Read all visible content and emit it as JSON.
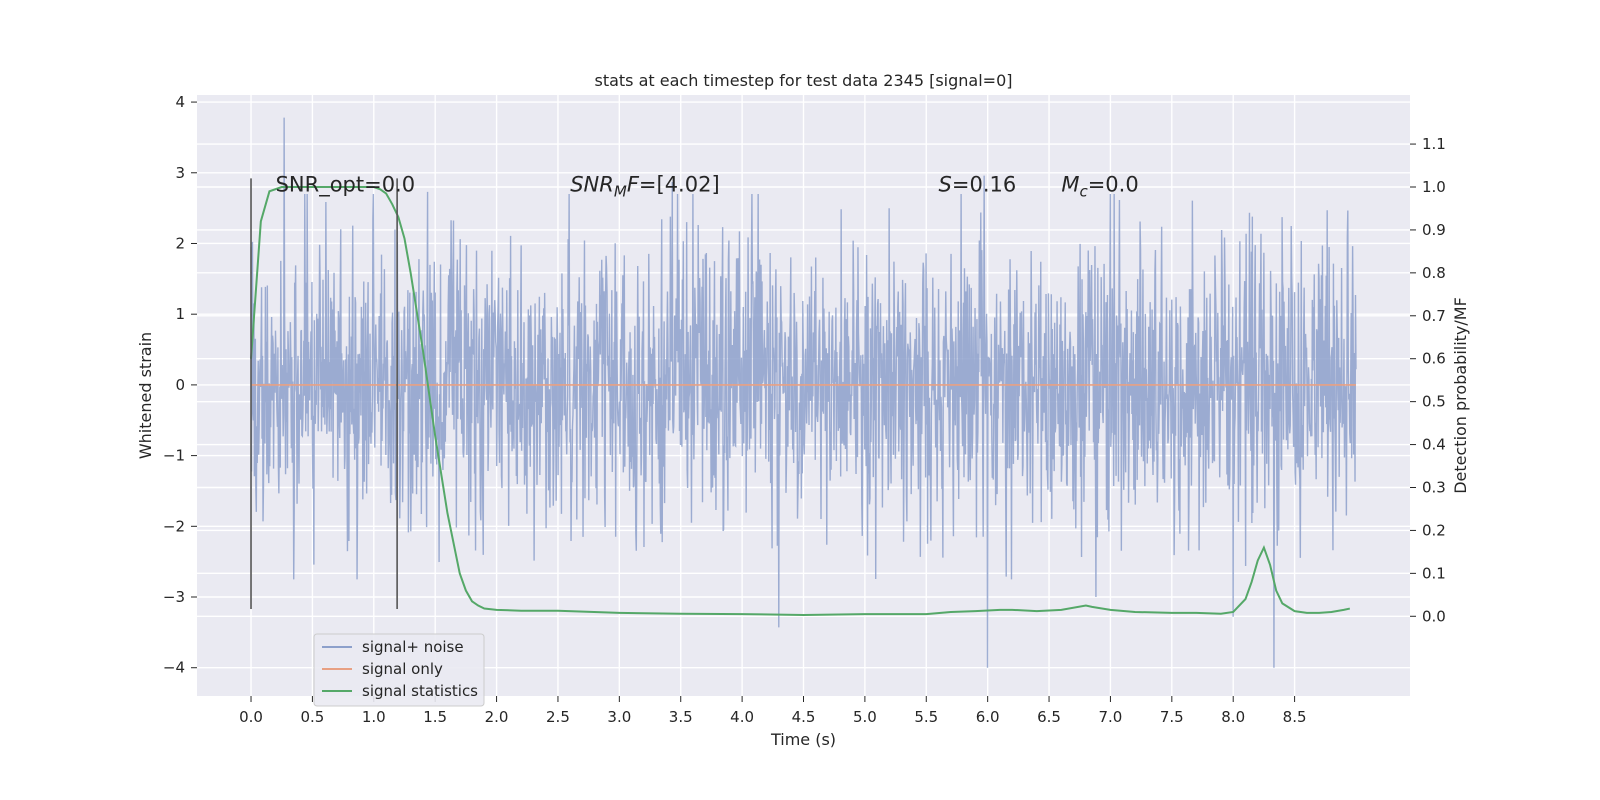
{
  "chart_data": {
    "type": "line",
    "title": "stats at each timestep for test data 2345 [signal=0]",
    "xlabel": "Time (s)",
    "ylabel": "Whitened strain",
    "y2label": "Detection probability/MF",
    "xlim": [
      -0.44,
      9.44
    ],
    "ylim": [
      -4.4,
      4.1
    ],
    "y2lim": [
      -0.1857,
      1.2143
    ],
    "xticks": [
      "0.0",
      "0.5",
      "1.0",
      "1.5",
      "2.0",
      "2.5",
      "3.0",
      "3.5",
      "4.0",
      "4.5",
      "5.0",
      "5.5",
      "6.0",
      "6.5",
      "7.0",
      "7.5",
      "8.0",
      "8.5"
    ],
    "yticks": [
      "4",
      "3",
      "2",
      "1",
      "0",
      "−1",
      "−2",
      "−3",
      "−4"
    ],
    "y2ticks": [
      "1.1",
      "1.0",
      "0.9",
      "0.8",
      "0.7",
      "0.6",
      "0.5",
      "0.4",
      "0.3",
      "0.2",
      "0.1",
      "0.0"
    ],
    "grid": true,
    "legend_position": "lower-left",
    "vlines": [
      {
        "x": 0.0,
        "ymin": -3.17,
        "ymax": 2.92
      },
      {
        "x": 1.19,
        "ymin": -3.17,
        "ymax": 2.92
      }
    ],
    "annotations": [
      {
        "x": 0.2,
        "y": 2.85,
        "prefix": "SNR_opt=0.0",
        "sub": "",
        "suffix": ""
      },
      {
        "x": 2.6,
        "y": 2.85,
        "prefix": "SNR",
        "sub": "M",
        "suffix": "F=[4.02]"
      },
      {
        "x": 5.6,
        "y": 2.85,
        "prefix": "S",
        "sub": "",
        "suffix": "=0.16"
      },
      {
        "x": 6.6,
        "y": 2.85,
        "prefix": "M",
        "sub": "c",
        "suffix": "=0.0"
      }
    ],
    "series": [
      {
        "name": "signal+ noise",
        "color": "#8da0cb",
        "t_start": 0.0,
        "t_end": 9.0,
        "n_samples": 2304,
        "noise_std": 1.0,
        "peak_max": [
          0.27,
          3.78,
          1.44,
          2.73,
          3.43,
          2.87,
          5.97,
          2.96,
          8.0,
          2.98
        ],
        "peak_min": [
          4.3,
          -3.43,
          6.0,
          -4.0,
          8.33,
          -4.0,
          8.0,
          -3.28,
          6.88,
          -3.0
        ]
      },
      {
        "name": "signal only",
        "color": "#e8a083",
        "x": [
          0.0,
          9.0
        ],
        "y": [
          0.0,
          0.0
        ]
      },
      {
        "name": "signal statistics",
        "color": "#55a868",
        "x": [
          0.0,
          0.08,
          0.15,
          0.25,
          0.4,
          0.6,
          0.8,
          1.0,
          1.05,
          1.1,
          1.15,
          1.2,
          1.25,
          1.3,
          1.4,
          1.5,
          1.6,
          1.7,
          1.75,
          1.8,
          1.85,
          1.9,
          2.0,
          2.2,
          2.5,
          3.0,
          3.5,
          4.0,
          4.5,
          5.0,
          5.5,
          5.7,
          5.9,
          6.1,
          6.2,
          6.4,
          6.6,
          6.8,
          6.85,
          7.0,
          7.2,
          7.5,
          7.7,
          7.9,
          8.0,
          8.1,
          8.15,
          8.2,
          8.25,
          8.3,
          8.35,
          8.4,
          8.5,
          8.6,
          8.7,
          8.8,
          8.9,
          8.95
        ],
        "y": [
          0.6,
          0.92,
          0.99,
          1.0,
          1.0,
          1.0,
          1.0,
          1.0,
          0.995,
          0.985,
          0.96,
          0.93,
          0.88,
          0.8,
          0.62,
          0.42,
          0.24,
          0.1,
          0.06,
          0.035,
          0.025,
          0.018,
          0.015,
          0.013,
          0.013,
          0.008,
          0.006,
          0.005,
          0.003,
          0.005,
          0.005,
          0.01,
          0.012,
          0.015,
          0.015,
          0.012,
          0.015,
          0.025,
          0.022,
          0.015,
          0.01,
          0.008,
          0.008,
          0.006,
          0.01,
          0.04,
          0.08,
          0.13,
          0.16,
          0.12,
          0.06,
          0.03,
          0.012,
          0.008,
          0.008,
          0.01,
          0.015,
          0.018
        ]
      }
    ]
  }
}
